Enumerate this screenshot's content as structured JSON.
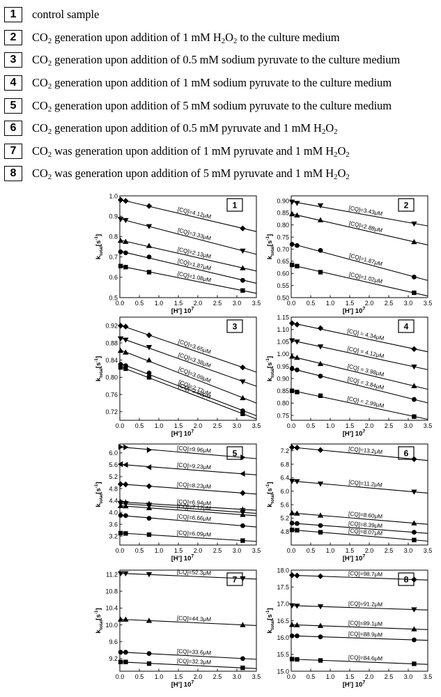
{
  "legend": [
    {
      "num": "1",
      "segments": [
        {
          "t": "control sample"
        }
      ]
    },
    {
      "num": "2",
      "segments": [
        {
          "t": "CO"
        },
        {
          "t": "2",
          "sub": true
        },
        {
          "t": " generation upon addition of 1 mM H"
        },
        {
          "t": "2",
          "sub": true
        },
        {
          "t": "O"
        },
        {
          "t": "2",
          "sub": true
        },
        {
          "t": "  to the culture medium"
        }
      ]
    },
    {
      "num": "3",
      "segments": [
        {
          "t": "CO"
        },
        {
          "t": "2",
          "sub": true
        },
        {
          "t": " generation upon addition of 0.5 mM sodium pyruvate to the culture medium"
        }
      ]
    },
    {
      "num": "4",
      "segments": [
        {
          "t": "CO"
        },
        {
          "t": "2",
          "sub": true
        },
        {
          "t": " generation upon addition of 1 mM sodium pyruvate to the culture medium"
        }
      ]
    },
    {
      "num": "5",
      "segments": [
        {
          "t": "CO"
        },
        {
          "t": "2",
          "sub": true
        },
        {
          "t": " generation upon addition of 5 mM sodium pyruvate to the culture medium"
        }
      ]
    },
    {
      "num": "6",
      "segments": [
        {
          "t": "CO"
        },
        {
          "t": "2",
          "sub": true
        },
        {
          "t": " generation upon addition of 0.5 mM pyruvate and 1 mM H"
        },
        {
          "t": "2",
          "sub": true
        },
        {
          "t": "O"
        },
        {
          "t": "2",
          "sub": true
        }
      ]
    },
    {
      "num": "7",
      "segments": [
        {
          "t": "CO"
        },
        {
          "t": "2",
          "sub": true
        },
        {
          "t": " was generation upon addition of 1 mM pyruvate and 1 mM H"
        },
        {
          "t": "2",
          "sub": true
        },
        {
          "t": "O"
        },
        {
          "t": "2",
          "sub": true
        }
      ]
    },
    {
      "num": "8",
      "segments": [
        {
          "t": "CO"
        },
        {
          "t": "2",
          "sub": true
        },
        {
          "t": " was generation upon addition of 5 mM pyruvate and 1 mM H"
        },
        {
          "t": "2",
          "sub": true
        },
        {
          "t": "O"
        },
        {
          "t": "2",
          "sub": true
        }
      ]
    }
  ],
  "chart_data": [
    {
      "type": "scatter",
      "panel": "1",
      "xlabel": "[H'] 10",
      "xlabel_sup": "7",
      "ylabel": "k",
      "ylabel_sub": "total",
      "ylabel_unit": "[s",
      "ylabel_sup": "-1",
      "ylabel_end": "]",
      "xlim": [
        0,
        3.5
      ],
      "ylim": [
        0.5,
        1.0
      ],
      "xticks": [
        "0.0",
        "0.5",
        "1.0",
        "1.5",
        "2.0",
        "2.5",
        "3.0",
        "3.5"
      ],
      "yticks": [
        "0.5",
        "0.6",
        "0.7",
        "0.8",
        "0.9",
        "1.0"
      ],
      "series": [
        {
          "marker": "diamond",
          "label": "[CQ]=4.12μM",
          "x": [
            0.02,
            0.15,
            0.75,
            3.15
          ],
          "y": [
            0.98,
            0.975,
            0.95,
            0.84
          ]
        },
        {
          "marker": "triangle-down",
          "label": "[CQ]=3.33μM",
          "x": [
            0.02,
            0.15,
            0.75,
            3.15
          ],
          "y": [
            0.885,
            0.88,
            0.85,
            0.73
          ]
        },
        {
          "marker": "triangle-up",
          "label": "[CQ]=2.13μM",
          "x": [
            0.02,
            0.15,
            0.75,
            3.15
          ],
          "y": [
            0.78,
            0.775,
            0.755,
            0.645
          ]
        },
        {
          "marker": "circle",
          "label": "[CQ]=1.87μM",
          "x": [
            0.02,
            0.15,
            0.75,
            3.15
          ],
          "y": [
            0.725,
            0.72,
            0.7,
            0.585
          ]
        },
        {
          "marker": "square",
          "label": "[CQ]=1.08μM",
          "x": [
            0.02,
            0.15,
            0.75,
            3.15
          ],
          "y": [
            0.655,
            0.65,
            0.625,
            0.535
          ]
        }
      ]
    },
    {
      "type": "scatter",
      "panel": "2",
      "xlabel": "[H'] 10",
      "xlabel_sup": "7",
      "ylabel": "k",
      "ylabel_sub": "total",
      "ylabel_unit": "[s",
      "ylabel_sup": "-1",
      "ylabel_end": "]",
      "xlim": [
        0,
        3.5
      ],
      "ylim": [
        0.5,
        0.92
      ],
      "xticks": [
        "0.0",
        "0.5",
        "1.0",
        "1.5",
        "2.0",
        "2.5",
        "3.0",
        "3.5"
      ],
      "yticks": [
        "0.50",
        "0.55",
        "0.60",
        "0.65",
        "0.70",
        "0.75",
        "0.80",
        "0.85",
        "0.90"
      ],
      "series": [
        {
          "marker": "triangle-down",
          "label": "[CQ]=3.43μM",
          "x": [
            0.02,
            0.15,
            0.75,
            3.15
          ],
          "y": [
            0.895,
            0.89,
            0.88,
            0.805
          ]
        },
        {
          "marker": "triangle-up",
          "label": "[CQ]=2.88μM",
          "x": [
            0.02,
            0.15,
            0.75,
            3.15
          ],
          "y": [
            0.845,
            0.84,
            0.82,
            0.73
          ]
        },
        {
          "marker": "circle",
          "label": "[CQ]=1.87μM",
          "x": [
            0.02,
            0.15,
            0.75,
            3.15
          ],
          "y": [
            0.72,
            0.715,
            0.695,
            0.585
          ]
        },
        {
          "marker": "square",
          "label": "[CQ]=1.02μM",
          "x": [
            0.02,
            0.15,
            0.75,
            3.15
          ],
          "y": [
            0.635,
            0.63,
            0.605,
            0.52
          ]
        }
      ]
    },
    {
      "type": "scatter",
      "panel": "3",
      "xlabel": "[H'] 10",
      "xlabel_sup": "7",
      "ylabel": "k",
      "ylabel_sub": "total",
      "ylabel_unit": "[s",
      "ylabel_sup": "-1",
      "ylabel_end": "]",
      "xlim": [
        0,
        3.5
      ],
      "ylim": [
        0.7,
        0.94
      ],
      "xticks": [
        "0.0",
        "0.5",
        "1.0",
        "1.5",
        "2.0",
        "2.5",
        "3.0",
        "3.5"
      ],
      "yticks": [
        "0.72",
        "0.76",
        "0.80",
        "0.84",
        "0.88",
        "0.92"
      ],
      "series": [
        {
          "marker": "diamond",
          "label": "[CQ]=3.65μM",
          "x": [
            0.02,
            0.15,
            0.75,
            3.15
          ],
          "y": [
            0.92,
            0.918,
            0.898,
            0.823
          ]
        },
        {
          "marker": "triangle-down",
          "label": "[CQ]=3.38μM",
          "x": [
            0.02,
            0.15,
            0.75,
            3.15
          ],
          "y": [
            0.89,
            0.887,
            0.87,
            0.79
          ]
        },
        {
          "marker": "triangle-up",
          "label": "[CQ]=3.09μM",
          "x": [
            0.02,
            0.15,
            0.75,
            3.15
          ],
          "y": [
            0.862,
            0.858,
            0.84,
            0.752
          ]
        },
        {
          "marker": "circle",
          "label": "[CQ]=2.77μM",
          "x": [
            0.02,
            0.15,
            0.75,
            3.15
          ],
          "y": [
            0.83,
            0.827,
            0.81,
            0.722
          ]
        },
        {
          "marker": "square",
          "label": "[CQ]=2.65μM",
          "x": [
            0.02,
            0.15,
            0.75,
            3.15
          ],
          "y": [
            0.823,
            0.82,
            0.8,
            0.715
          ]
        }
      ]
    },
    {
      "type": "scatter",
      "panel": "4",
      "xlabel": "[H'] 10",
      "xlabel_sup": "7",
      "ylabel": "k",
      "ylabel_sub": "total",
      "ylabel_unit": "[s",
      "ylabel_sup": "-1",
      "ylabel_end": "]",
      "xlim": [
        0,
        3.5
      ],
      "ylim": [
        0.73,
        1.15
      ],
      "xticks": [
        "0.0",
        "0.5",
        "1.0",
        "1.5",
        "2.0",
        "2.5",
        "3.0",
        "3.5"
      ],
      "yticks": [
        "0.75",
        "0.80",
        "0.85",
        "0.90",
        "0.95",
        "1.00",
        "1.05",
        "1.10",
        "1.15"
      ],
      "series": [
        {
          "marker": "diamond",
          "label": "[CQ] = 4.34μM",
          "x": [
            0.02,
            0.15,
            0.75,
            3.15
          ],
          "y": [
            1.125,
            1.12,
            1.105,
            1.02
          ]
        },
        {
          "marker": "triangle-down",
          "label": "[CQ] = 4.12μM",
          "x": [
            0.02,
            0.15,
            0.75,
            3.15
          ],
          "y": [
            1.055,
            1.05,
            1.03,
            0.948
          ]
        },
        {
          "marker": "triangle-up",
          "label": "[CQ] = 3.98μM",
          "x": [
            0.02,
            0.15,
            0.75,
            3.15
          ],
          "y": [
            0.99,
            0.985,
            0.96,
            0.87
          ]
        },
        {
          "marker": "circle",
          "label": "[CQ] = 3.84μM",
          "x": [
            0.02,
            0.15,
            0.75,
            3.15
          ],
          "y": [
            0.94,
            0.935,
            0.91,
            0.815
          ]
        },
        {
          "marker": "square",
          "label": "[CQ] = 2.99μM",
          "x": [
            0.02,
            0.15,
            0.75,
            3.15
          ],
          "y": [
            0.85,
            0.845,
            0.83,
            0.745
          ]
        }
      ]
    },
    {
      "type": "scatter",
      "panel": "5",
      "xlabel": "[H'] 10",
      "xlabel_sup": "7",
      "ylabel": "k",
      "ylabel_sub": "total",
      "ylabel_unit": "[s",
      "ylabel_sup": "-1",
      "ylabel_end": "]",
      "xlim": [
        0,
        3.5
      ],
      "ylim": [
        2.9,
        6.3
      ],
      "xticks": [
        "0.0",
        "0.5",
        "1.0",
        "1.5",
        "2.0",
        "2.5",
        "3.0",
        "3.5"
      ],
      "yticks": [
        "3.2",
        "3.6",
        "4.0",
        "4.4",
        "4.8",
        "5.2",
        "5.6",
        "6.0"
      ],
      "series": [
        {
          "marker": "triangle-right",
          "label": "[CQ]=9.96μM",
          "x": [
            0.02,
            0.15,
            0.75,
            3.15
          ],
          "y": [
            6.2,
            6.19,
            6.1,
            5.85
          ]
        },
        {
          "marker": "triangle-left",
          "label": "[CQ]=9.23μM",
          "x": [
            0.02,
            0.15,
            0.75,
            3.15
          ],
          "y": [
            5.62,
            5.6,
            5.52,
            5.3
          ]
        },
        {
          "marker": "diamond",
          "label": "[CQ]=8.23μM",
          "x": [
            0.02,
            0.15,
            0.75,
            3.15
          ],
          "y": [
            4.95,
            4.94,
            4.88,
            4.65
          ]
        },
        {
          "marker": "star",
          "label": "[CQ]=6.94μM",
          "x": [
            0.02,
            0.15,
            0.75,
            3.15
          ],
          "y": [
            4.35,
            4.34,
            4.29,
            4.1
          ]
        },
        {
          "marker": "triangle-down",
          "label": "",
          "x": [
            0.02,
            0.15,
            0.75,
            3.15
          ],
          "y": [
            4.3,
            4.29,
            4.22,
            4.0
          ]
        },
        {
          "marker": "triangle-up",
          "label": "[CQ]=7.12μM",
          "x": [
            0.02,
            0.15,
            0.75,
            3.15
          ],
          "y": [
            4.22,
            4.21,
            4.15,
            3.92
          ]
        },
        {
          "marker": "circle",
          "label": "[CQ]=6.66μM",
          "x": [
            0.02,
            0.15,
            0.75,
            3.15
          ],
          "y": [
            3.9,
            3.89,
            3.8,
            3.55
          ]
        },
        {
          "marker": "square",
          "label": "[CQ]=6.09μM",
          "x": [
            0.02,
            0.15,
            0.75,
            3.15
          ],
          "y": [
            3.3,
            3.29,
            3.25,
            3.05
          ]
        }
      ]
    },
    {
      "type": "scatter",
      "panel": "6",
      "xlabel": "[H'] 10",
      "xlabel_sup": "7",
      "ylabel": "k",
      "ylabel_sub": "total",
      "ylabel_unit": "[s",
      "ylabel_sup": "-1",
      "ylabel_end": "]",
      "xlim": [
        0,
        3.5
      ],
      "ylim": [
        4.4,
        7.4
      ],
      "xticks": [
        "0.0",
        "0.5",
        "1.0",
        "1.5",
        "2.0",
        "2.5",
        "3.0",
        "3.5"
      ],
      "yticks": [
        "4.8",
        "5.2",
        "5.6",
        "6.0",
        "6.4",
        "6.8",
        "7.2"
      ],
      "series": [
        {
          "marker": "diamond",
          "label": "[CQ]=13.2μM",
          "x": [
            0.02,
            0.15,
            0.75,
            3.15
          ],
          "y": [
            7.3,
            7.29,
            7.22,
            6.95
          ]
        },
        {
          "marker": "triangle-down",
          "label": "[CQ]=11.2μM",
          "x": [
            0.02,
            0.15,
            0.75,
            3.15
          ],
          "y": [
            6.3,
            6.29,
            6.22,
            5.98
          ]
        },
        {
          "marker": "triangle-up",
          "label": "[CQ]=8.60μM",
          "x": [
            0.02,
            0.15,
            0.75,
            3.15
          ],
          "y": [
            5.35,
            5.34,
            5.28,
            5.05
          ]
        },
        {
          "marker": "circle",
          "label": "[CQ]=8.39μM",
          "x": [
            0.02,
            0.15,
            0.75,
            3.15
          ],
          "y": [
            5.05,
            5.04,
            4.98,
            4.78
          ]
        },
        {
          "marker": "square",
          "label": "[CQ]=8.07μM",
          "x": [
            0.02,
            0.15,
            0.75,
            3.15
          ],
          "y": [
            4.85,
            4.84,
            4.78,
            4.55
          ]
        }
      ]
    },
    {
      "type": "scatter",
      "panel": "7",
      "xlabel": "[H'] 10",
      "xlabel_sup": "7",
      "ylabel": "k",
      "ylabel_sub": "total",
      "ylabel_unit": "[s",
      "ylabel_sup": "-1",
      "ylabel_end": "]",
      "xlim": [
        0,
        3.5
      ],
      "ylim": [
        8.9,
        11.3
      ],
      "xticks": [
        "0.0",
        "0.5",
        "1.0",
        "1.5",
        "2.0",
        "2.5",
        "3.0",
        "3.5"
      ],
      "yticks": [
        "9.2",
        "9.6",
        "10.0",
        "10.4",
        "10.8",
        "11.2"
      ],
      "series": [
        {
          "marker": "triangle-down",
          "label": "[CQ]=52.3μM",
          "x": [
            0.02,
            0.15,
            0.75,
            3.15
          ],
          "y": [
            11.22,
            11.22,
            11.2,
            11.1
          ]
        },
        {
          "marker": "triangle-up",
          "label": "[CQ]=44.3μM",
          "x": [
            0.02,
            0.15,
            0.75,
            3.15
          ],
          "y": [
            10.13,
            10.13,
            10.1,
            10.0
          ]
        },
        {
          "marker": "circle",
          "label": "[CQ]=33.6μM",
          "x": [
            0.02,
            0.15,
            0.75,
            3.15
          ],
          "y": [
            9.35,
            9.35,
            9.32,
            9.2
          ]
        },
        {
          "marker": "square",
          "label": "[CQ]=32.3μM",
          "x": [
            0.02,
            0.15,
            0.75,
            3.15
          ],
          "y": [
            9.12,
            9.12,
            9.08,
            8.98
          ]
        }
      ]
    },
    {
      "type": "scatter",
      "panel": "8",
      "xlabel": "[H'] 10",
      "xlabel_sup": "7",
      "ylabel": "k",
      "ylabel_sub": "total",
      "ylabel_unit": "[s",
      "ylabel_sup": "-1",
      "ylabel_end": "]",
      "xlim": [
        0,
        3.5
      ],
      "ylim": [
        15.0,
        18.0
      ],
      "xticks": [
        "0.0",
        "0.5",
        "1.0",
        "1.5",
        "2.0",
        "2.5",
        "3.0",
        "3.5"
      ],
      "yticks": [
        "15.0",
        "15.5",
        "16.0",
        "16.5",
        "17.0",
        "17.5",
        "18.0"
      ],
      "series": [
        {
          "marker": "diamond",
          "label": "[CQ]=98.7μM",
          "x": [
            0.02,
            0.15,
            0.75,
            3.15
          ],
          "y": [
            17.85,
            17.84,
            17.82,
            17.72
          ]
        },
        {
          "marker": "triangle-down",
          "label": "[CQ]=91.2μM",
          "x": [
            0.02,
            0.15,
            0.75,
            3.15
          ],
          "y": [
            16.95,
            16.94,
            16.92,
            16.83
          ]
        },
        {
          "marker": "triangle-up",
          "label": "[CQ]=89.1μM",
          "x": [
            0.02,
            0.15,
            0.75,
            3.15
          ],
          "y": [
            16.38,
            16.37,
            16.35,
            16.25
          ]
        },
        {
          "marker": "circle",
          "label": "[CQ]=88.9μM",
          "x": [
            0.02,
            0.15,
            0.75,
            3.15
          ],
          "y": [
            16.05,
            16.05,
            16.02,
            15.93
          ]
        },
        {
          "marker": "square",
          "label": "[CQ]=84.6μM",
          "x": [
            0.02,
            0.15,
            0.75,
            3.15
          ],
          "y": [
            15.36,
            15.35,
            15.32,
            15.22
          ]
        }
      ]
    }
  ]
}
